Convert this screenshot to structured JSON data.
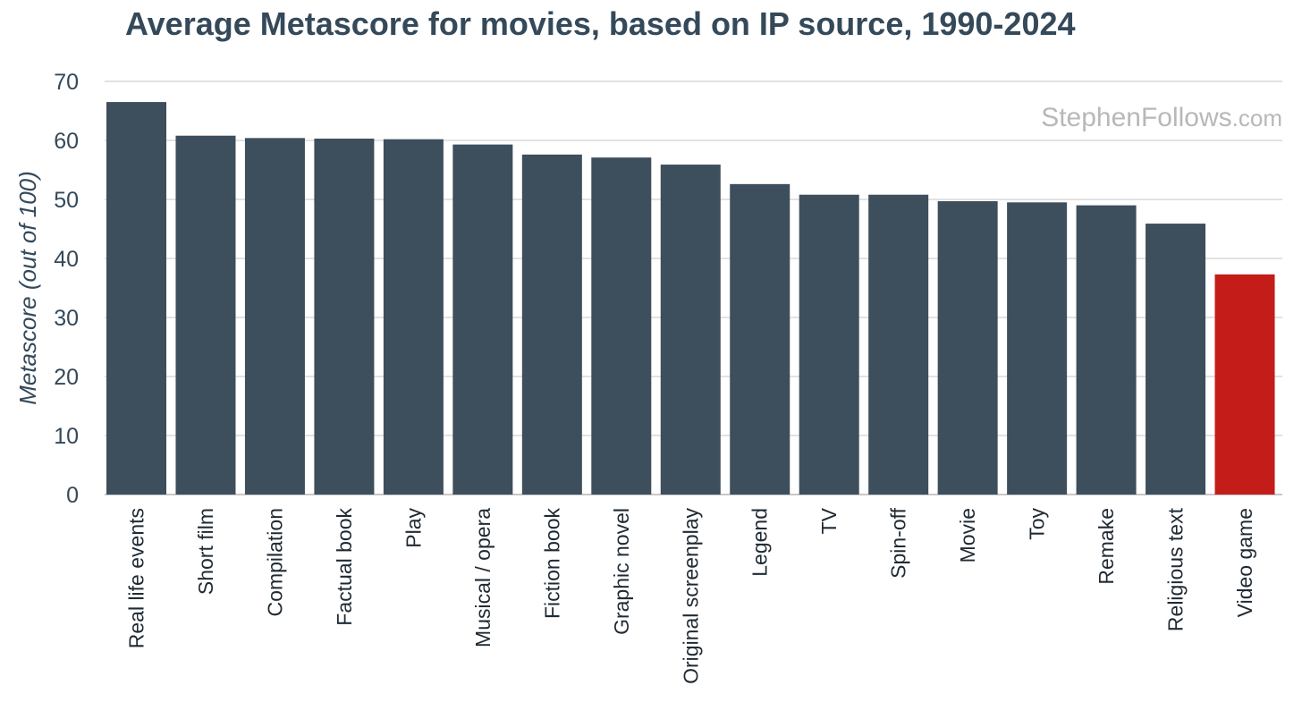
{
  "chart_data": {
    "type": "bar",
    "title": "Average Metascore for movies, based on IP source, 1990-2024",
    "ylabel": "Metascore (out of 100)",
    "xlabel": "",
    "ylim": [
      0,
      70
    ],
    "yticks": [
      0,
      10,
      20,
      30,
      40,
      50,
      60,
      70
    ],
    "grid": true,
    "categories": [
      "Real life events",
      "Short film",
      "Compilation",
      "Factual book",
      "Play",
      "Musical / opera",
      "Fiction book",
      "Graphic novel",
      "Original screenplay",
      "Legend",
      "TV",
      "Spin-off",
      "Movie",
      "Toy",
      "Remake",
      "Religious text",
      "Video game"
    ],
    "values": [
      66.5,
      60.8,
      60.4,
      60.3,
      60.2,
      59.3,
      57.6,
      57.1,
      55.9,
      52.6,
      50.8,
      50.8,
      49.7,
      49.5,
      49.0,
      45.9,
      37.3
    ],
    "colors": [
      "#3d4e5d",
      "#3d4e5d",
      "#3d4e5d",
      "#3d4e5d",
      "#3d4e5d",
      "#3d4e5d",
      "#3d4e5d",
      "#3d4e5d",
      "#3d4e5d",
      "#3d4e5d",
      "#3d4e5d",
      "#3d4e5d",
      "#3d4e5d",
      "#3d4e5d",
      "#3d4e5d",
      "#3d4e5d",
      "#c41c19"
    ],
    "watermark": {
      "main": "StephenFollows",
      "tail": ".com"
    }
  }
}
